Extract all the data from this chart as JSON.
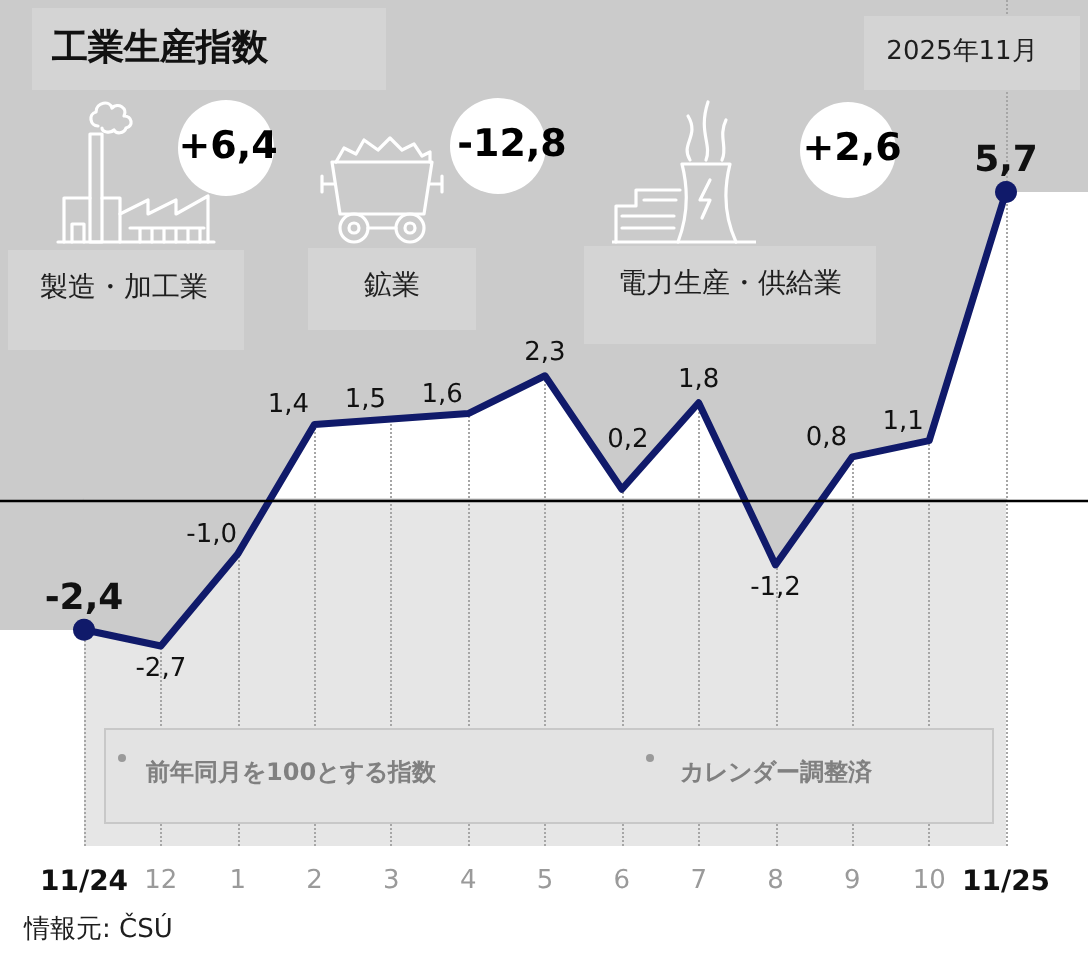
{
  "chart_data": {
    "type": "line",
    "title": "工業生産指数",
    "subtitle": "2025年11月",
    "categories": [
      "11/24",
      "12",
      "1",
      "2",
      "3",
      "4",
      "5",
      "6",
      "7",
      "8",
      "9",
      "10",
      "11/25"
    ],
    "series": [
      {
        "color": "#101a6a",
        "values": [
          -2.4,
          -2.7,
          -1.0,
          1.4,
          1.5,
          1.6,
          2.3,
          0.2,
          1.8,
          -1.2,
          0.8,
          1.1,
          5.7
        ],
        "value_labels": [
          "-2,4",
          "-2,7",
          "-1,0",
          "1,4",
          "1,5",
          "1,6",
          "2,3",
          "0,2",
          "1,8",
          "-1,2",
          "0,8",
          "1,1",
          "5,7"
        ]
      },
      {
        "type": "scatter",
        "color": "#101a6a",
        "x": [
          "11/24",
          "11/25"
        ],
        "values": [
          -2.4,
          5.7
        ],
        "marker": "circle"
      }
    ],
    "marker": "none",
    "line_style": "solid",
    "grid": "x",
    "tick_labels": "x",
    "ref_lines": [
      {
        "axis": "y",
        "value": 0,
        "color": "#000000"
      }
    ],
    "annotations": [
      "製造・加工業",
      "+6,4",
      "鉱業",
      "-12,8",
      "電力生産・供給業",
      "+2,6",
      "前年同月を100とする指数",
      "カレンダー調整済",
      "情報元: ČSÚ"
    ]
  }
}
